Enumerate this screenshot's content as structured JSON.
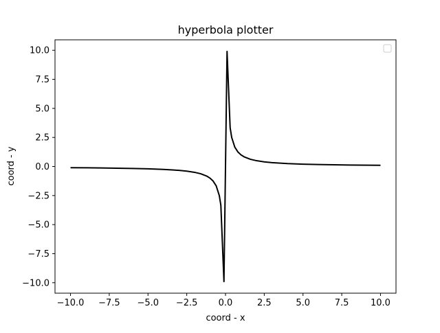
{
  "chart_data": {
    "type": "line",
    "title": "hyperbola plotter",
    "xlabel": "coord - x",
    "ylabel": "coord - y",
    "xlim": [
      -11.0,
      11.0
    ],
    "ylim": [
      -10.9,
      10.9
    ],
    "xticks": [
      -10.0,
      -7.5,
      -5.0,
      -2.5,
      0.0,
      2.5,
      5.0,
      7.5,
      10.0
    ],
    "xtick_labels": [
      "−10.0",
      "−7.5",
      "−5.0",
      "−2.5",
      "0.0",
      "2.5",
      "5.0",
      "7.5",
      "10.0"
    ],
    "yticks": [
      -10.0,
      -7.5,
      -5.0,
      -2.5,
      0.0,
      2.5,
      5.0,
      7.5,
      10.0
    ],
    "ytick_labels": [
      "−10.0",
      "−7.5",
      "−5.0",
      "−2.5",
      "0.0",
      "2.5",
      "5.0",
      "7.5",
      "10.0"
    ],
    "grid": false,
    "legend": {
      "placement": "upper-right",
      "entries": []
    },
    "series": [
      {
        "color": "#000000",
        "x": [
          -10.0,
          -8.0,
          -6.0,
          -5.0,
          -4.0,
          -3.0,
          -2.5,
          -2.0,
          -1.6,
          -1.2,
          -1.0,
          -0.8,
          -0.6,
          -0.4,
          -0.3,
          -0.1,
          0.1,
          0.3,
          0.4,
          0.6,
          0.8,
          1.0,
          1.2,
          1.6,
          2.0,
          2.5,
          3.0,
          4.0,
          5.0,
          6.0,
          8.0,
          10.0
        ],
        "y": [
          -0.1,
          -0.125,
          -0.167,
          -0.2,
          -0.25,
          -0.333,
          -0.4,
          -0.5,
          -0.625,
          -0.833,
          -1.0,
          -1.25,
          -1.667,
          -2.5,
          -3.333,
          -9.9,
          9.9,
          3.333,
          2.5,
          1.667,
          1.25,
          1.0,
          0.833,
          0.625,
          0.5,
          0.4,
          0.333,
          0.25,
          0.2,
          0.167,
          0.125,
          0.1
        ]
      }
    ]
  }
}
